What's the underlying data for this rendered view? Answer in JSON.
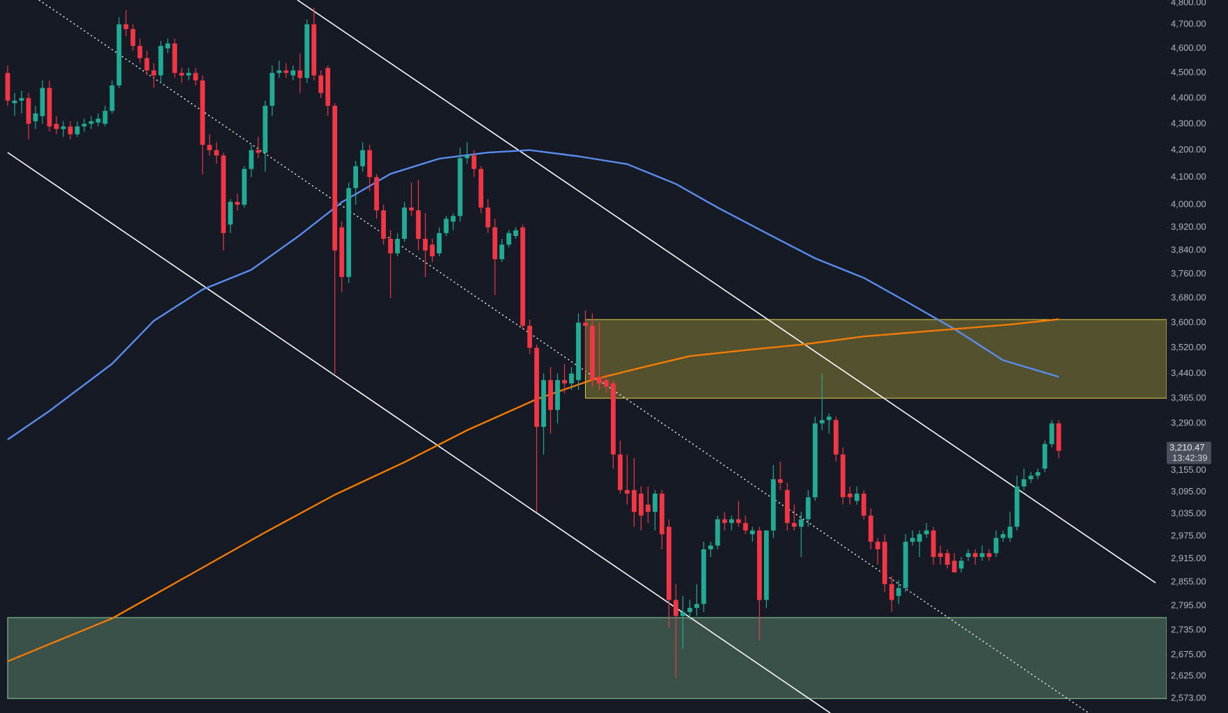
{
  "chart_data": {
    "type": "candlestick",
    "log_scale": true,
    "grid": false,
    "up_color": "#22ab94",
    "down_color": "#f23645",
    "background": "#161a25",
    "ylim": [
      2540,
      4803
    ],
    "yticks": [
      {
        "value": 4800,
        "label": "4,800.00"
      },
      {
        "value": 4700,
        "label": "4,700.00"
      },
      {
        "value": 4600,
        "label": "4,600.00"
      },
      {
        "value": 4500,
        "label": "4,500.00"
      },
      {
        "value": 4400,
        "label": "4,400.00"
      },
      {
        "value": 4300,
        "label": "4,300.00"
      },
      {
        "value": 4200,
        "label": "4,200.00"
      },
      {
        "value": 4100,
        "label": "4,100.00"
      },
      {
        "value": 4000,
        "label": "4,000.00"
      },
      {
        "value": 3920,
        "label": "3,920.00"
      },
      {
        "value": 3840,
        "label": "3,840.00"
      },
      {
        "value": 3760,
        "label": "3,760.00"
      },
      {
        "value": 3680,
        "label": "3,680.00"
      },
      {
        "value": 3600,
        "label": "3,600.00"
      },
      {
        "value": 3520,
        "label": "3,520.00"
      },
      {
        "value": 3440,
        "label": "3,440.00"
      },
      {
        "value": 3365,
        "label": "3,365.00"
      },
      {
        "value": 3290,
        "label": "3,290.00"
      },
      {
        "value": 3155,
        "label": "3,155.00"
      },
      {
        "value": 3095,
        "label": "3,095.00"
      },
      {
        "value": 3035,
        "label": "3,035.00"
      },
      {
        "value": 2975,
        "label": "2,975.00"
      },
      {
        "value": 2915,
        "label": "2,915.00"
      },
      {
        "value": 2855,
        "label": "2,855.00"
      },
      {
        "value": 2795,
        "label": "2,795.00"
      },
      {
        "value": 2735,
        "label": "2,735.00"
      },
      {
        "value": 2675,
        "label": "2,675.00"
      },
      {
        "value": 2625,
        "label": "2,625.00"
      },
      {
        "value": 2573,
        "label": "2,573.00"
      }
    ],
    "last_price": {
      "value": 3210.47,
      "label": "3,210.47"
    },
    "countdown": "13:42:39",
    "zones": [
      {
        "from": 3365,
        "to": 3610,
        "start": 83,
        "color": "#e6d04a"
      },
      {
        "from": 2573,
        "to": 2766,
        "start": 0,
        "color": "#8fd19e"
      }
    ],
    "series": [
      {
        "color": "#5b8def",
        "x": [
          0,
          6,
          15,
          21,
          28,
          35,
          42,
          48,
          55,
          62,
          69,
          75,
          82,
          89,
          96,
          102,
          109,
          116,
          123,
          129,
          136,
          143,
          151
        ],
        "values": [
          3243,
          3327,
          3470,
          3606,
          3708,
          3774,
          3893,
          4009,
          4112,
          4168,
          4191,
          4200,
          4177,
          4148,
          4075,
          3990,
          3900,
          3813,
          3747,
          3670,
          3580,
          3481,
          3430
        ]
      },
      {
        "color": "#f57c00",
        "x": [
          0,
          15,
          26,
          37,
          47,
          57,
          66,
          76,
          84,
          91,
          98,
          107,
          114,
          123,
          134,
          144,
          151
        ],
        "values": [
          2660,
          2764,
          2872,
          2985,
          3087,
          3178,
          3270,
          3362,
          3421,
          3458,
          3494,
          3515,
          3530,
          3556,
          3576,
          3594,
          3611
        ]
      }
    ],
    "ohlc": [
      [
        4500,
        4530,
        4370,
        4390
      ],
      [
        4380,
        4420,
        4330,
        4390
      ],
      [
        4390,
        4430,
        4340,
        4400
      ],
      [
        4400,
        4420,
        4240,
        4300
      ],
      [
        4310,
        4370,
        4280,
        4340
      ],
      [
        4330,
        4470,
        4300,
        4440
      ],
      [
        4440,
        4470,
        4270,
        4290
      ],
      [
        4300,
        4330,
        4260,
        4280
      ],
      [
        4280,
        4310,
        4250,
        4290
      ],
      [
        4290,
        4310,
        4240,
        4260
      ],
      [
        4260,
        4310,
        4250,
        4290
      ],
      [
        4290,
        4320,
        4270,
        4300
      ],
      [
        4300,
        4330,
        4280,
        4310
      ],
      [
        4305,
        4340,
        4290,
        4320
      ],
      [
        4300,
        4370,
        4290,
        4350
      ],
      [
        4350,
        4470,
        4340,
        4450
      ],
      [
        4450,
        4730,
        4440,
        4700
      ],
      [
        4700,
        4760,
        4650,
        4680
      ],
      [
        4680,
        4700,
        4590,
        4610
      ],
      [
        4610,
        4640,
        4540,
        4560
      ],
      [
        4560,
        4590,
        4490,
        4510
      ],
      [
        4510,
        4540,
        4440,
        4490
      ],
      [
        4490,
        4630,
        4460,
        4610
      ],
      [
        4600,
        4640,
        4580,
        4620
      ],
      [
        4620,
        4640,
        4480,
        4500
      ],
      [
        4500,
        4520,
        4460,
        4490
      ],
      [
        4490,
        4520,
        4470,
        4500
      ],
      [
        4500,
        4520,
        4450,
        4470
      ],
      [
        4470,
        4490,
        4110,
        4220
      ],
      [
        4220,
        4260,
        4180,
        4200
      ],
      [
        4200,
        4230,
        4150,
        4180
      ],
      [
        4180,
        4190,
        3840,
        3900
      ],
      [
        3930,
        4020,
        3900,
        4010
      ],
      [
        4010,
        4040,
        3980,
        4000
      ],
      [
        4000,
        4140,
        3990,
        4130
      ],
      [
        4130,
        4220,
        4100,
        4200
      ],
      [
        4200,
        4250,
        4170,
        4190
      ],
      [
        4190,
        4390,
        4120,
        4370
      ],
      [
        4370,
        4530,
        4330,
        4500
      ],
      [
        4500,
        4550,
        4480,
        4510
      ],
      [
        4510,
        4540,
        4480,
        4500
      ],
      [
        4490,
        4530,
        4470,
        4510
      ],
      [
        4510,
        4580,
        4420,
        4480
      ],
      [
        4480,
        4720,
        4460,
        4700
      ],
      [
        4700,
        4770,
        4470,
        4490
      ],
      [
        4490,
        4510,
        4400,
        4420
      ],
      [
        4520,
        4530,
        4330,
        4370
      ],
      [
        4370,
        4380,
        3440,
        3840
      ],
      [
        3920,
        3940,
        3700,
        3750
      ],
      [
        3750,
        4080,
        3730,
        4060
      ],
      [
        4060,
        4160,
        4000,
        4140
      ],
      [
        4140,
        4230,
        4120,
        4200
      ],
      [
        4200,
        4220,
        4050,
        4100
      ],
      [
        4100,
        4110,
        3950,
        3980
      ],
      [
        3980,
        4000,
        3860,
        3880
      ],
      [
        3880,
        3910,
        3680,
        3830
      ],
      [
        3830,
        3900,
        3820,
        3880
      ],
      [
        3880,
        4010,
        3870,
        3990
      ],
      [
        3990,
        4080,
        3960,
        3980
      ],
      [
        3980,
        4090,
        3840,
        3880
      ],
      [
        3880,
        3970,
        3750,
        3840
      ],
      [
        3860,
        3880,
        3800,
        3820
      ],
      [
        3830,
        3920,
        3820,
        3900
      ],
      [
        3900,
        3960,
        3890,
        3950
      ],
      [
        3940,
        3970,
        3910,
        3960
      ],
      [
        3960,
        4210,
        3940,
        4170
      ],
      [
        4170,
        4230,
        4150,
        4180
      ],
      [
        4180,
        4200,
        4100,
        4130
      ],
      [
        4130,
        4140,
        3970,
        3990
      ],
      [
        3990,
        4020,
        3900,
        3920
      ],
      [
        3920,
        3950,
        3690,
        3810
      ],
      [
        3810,
        3880,
        3800,
        3860
      ],
      [
        3860,
        3910,
        3850,
        3900
      ],
      [
        3890,
        3920,
        3880,
        3910
      ],
      [
        3920,
        3930,
        3580,
        3590
      ],
      [
        3590,
        3610,
        3500,
        3520
      ],
      [
        3520,
        3530,
        3040,
        3280
      ],
      [
        3280,
        3440,
        3200,
        3420
      ],
      [
        3420,
        3460,
        3260,
        3330
      ],
      [
        3330,
        3440,
        3290,
        3420
      ],
      [
        3420,
        3470,
        3380,
        3410
      ],
      [
        3410,
        3460,
        3390,
        3440
      ],
      [
        3420,
        3630,
        3390,
        3600
      ],
      [
        3600,
        3640,
        3440,
        3590
      ],
      [
        3590,
        3630,
        3400,
        3420
      ],
      [
        3430,
        3600,
        3390,
        3410
      ],
      [
        3420,
        3440,
        3380,
        3400
      ],
      [
        3410,
        3420,
        3160,
        3200
      ],
      [
        3200,
        3240,
        3090,
        3100
      ],
      [
        3100,
        3200,
        3060,
        3090
      ],
      [
        3100,
        3190,
        3000,
        3040
      ],
      [
        3090,
        3110,
        2990,
        3030
      ],
      [
        3060,
        3110,
        3010,
        3040
      ],
      [
        3040,
        3100,
        2990,
        3090
      ],
      [
        3090,
        3100,
        2940,
        2980
      ],
      [
        3000,
        3020,
        2740,
        2810
      ],
      [
        2810,
        2850,
        2620,
        2770
      ],
      [
        2770,
        2820,
        2690,
        2780
      ],
      [
        2780,
        2810,
        2760,
        2790
      ],
      [
        2790,
        2850,
        2770,
        2800
      ],
      [
        2800,
        2960,
        2780,
        2940
      ],
      [
        2940,
        2960,
        2920,
        2950
      ],
      [
        2950,
        3030,
        2940,
        3020
      ],
      [
        3020,
        3040,
        2990,
        3010
      ],
      [
        3010,
        3030,
        2990,
        3020
      ],
      [
        3020,
        3070,
        3000,
        3010
      ],
      [
        3010,
        3030,
        2980,
        2990
      ],
      [
        2980,
        3000,
        2960,
        2990
      ],
      [
        2990,
        3000,
        2710,
        2810
      ],
      [
        2810,
        2990,
        2790,
        2990
      ],
      [
        2990,
        3170,
        2970,
        3130
      ],
      [
        3130,
        3180,
        3100,
        3120
      ],
      [
        3100,
        3120,
        2990,
        3010
      ],
      [
        3010,
        3060,
        2990,
        3000
      ],
      [
        3000,
        3040,
        2920,
        3020
      ],
      [
        3020,
        3100,
        3000,
        3080
      ],
      [
        3080,
        3310,
        3070,
        3290
      ],
      [
        3290,
        3440,
        3270,
        3300
      ],
      [
        3300,
        3320,
        3260,
        3310
      ],
      [
        3300,
        3310,
        3180,
        3200
      ],
      [
        3200,
        3220,
        3060,
        3080
      ],
      [
        3090,
        3110,
        3060,
        3080
      ],
      [
        3070,
        3110,
        3060,
        3090
      ],
      [
        3090,
        3100,
        3020,
        3030
      ],
      [
        3030,
        3050,
        2940,
        2960
      ],
      [
        2960,
        2970,
        2900,
        2940
      ],
      [
        2960,
        2980,
        2830,
        2850
      ],
      [
        2850,
        2870,
        2780,
        2810
      ],
      [
        2820,
        2860,
        2800,
        2840
      ],
      [
        2840,
        2980,
        2830,
        2960
      ],
      [
        2960,
        2990,
        2950,
        2970
      ],
      [
        2960,
        2990,
        2920,
        2980
      ],
      [
        2980,
        3010,
        2970,
        2990
      ],
      [
        2990,
        3000,
        2900,
        2920
      ],
      [
        2930,
        2950,
        2900,
        2920
      ],
      [
        2930,
        2940,
        2890,
        2900
      ],
      [
        2910,
        2930,
        2880,
        2880
      ],
      [
        2890,
        2920,
        2880,
        2910
      ],
      [
        2920,
        2940,
        2910,
        2930
      ],
      [
        2930,
        2940,
        2900,
        2920
      ],
      [
        2920,
        2950,
        2910,
        2930
      ],
      [
        2930,
        2940,
        2910,
        2920
      ],
      [
        2930,
        2990,
        2920,
        2970
      ],
      [
        2970,
        2990,
        2960,
        2980
      ],
      [
        2970,
        3040,
        2960,
        3000
      ],
      [
        3000,
        3140,
        2990,
        3110
      ],
      [
        3110,
        3160,
        3100,
        3130
      ],
      [
        3130,
        3150,
        3120,
        3140
      ],
      [
        3140,
        3160,
        3130,
        3150
      ],
      [
        3160,
        3240,
        3150,
        3230
      ],
      [
        3230,
        3300,
        3220,
        3290
      ],
      [
        3290,
        3300,
        3190,
        3210.47
      ]
    ]
  }
}
